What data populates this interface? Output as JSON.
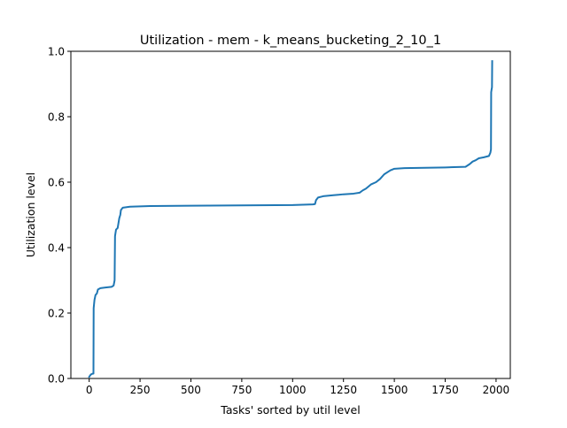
{
  "chart_data": {
    "type": "line",
    "title": "Utilization - mem - k_means_bucketing_2_10_1",
    "xlabel": "Tasks' sorted by util level",
    "ylabel": "Utilization level",
    "xlim": [
      -90,
      2070
    ],
    "ylim": [
      0.0,
      1.0
    ],
    "x_ticks": [
      0,
      250,
      500,
      750,
      1000,
      1250,
      1500,
      1750,
      2000
    ],
    "x_tick_labels": [
      "0",
      "250",
      "500",
      "750",
      "1000",
      "1250",
      "1500",
      "1750",
      "2000"
    ],
    "y_ticks": [
      0.0,
      0.2,
      0.4,
      0.6,
      0.8,
      1.0
    ],
    "y_tick_labels": [
      "0.0",
      "0.2",
      "0.4",
      "0.6",
      "0.8",
      "1.0"
    ],
    "grid": false,
    "legend": false,
    "series": [
      {
        "color": "#1f77b4",
        "points": [
          [
            0,
            0.005
          ],
          [
            8,
            0.012
          ],
          [
            17,
            0.015
          ],
          [
            21,
            0.015
          ],
          [
            22,
            0.215
          ],
          [
            26,
            0.24
          ],
          [
            31,
            0.255
          ],
          [
            38,
            0.26
          ],
          [
            43,
            0.272
          ],
          [
            55,
            0.276
          ],
          [
            80,
            0.278
          ],
          [
            110,
            0.28
          ],
          [
            120,
            0.284
          ],
          [
            125,
            0.3
          ],
          [
            127,
            0.435
          ],
          [
            132,
            0.455
          ],
          [
            140,
            0.46
          ],
          [
            148,
            0.49
          ],
          [
            153,
            0.5
          ],
          [
            156,
            0.515
          ],
          [
            165,
            0.522
          ],
          [
            200,
            0.525
          ],
          [
            300,
            0.527
          ],
          [
            500,
            0.528
          ],
          [
            750,
            0.529
          ],
          [
            1000,
            0.53
          ],
          [
            1100,
            0.532
          ],
          [
            1110,
            0.533
          ],
          [
            1115,
            0.545
          ],
          [
            1125,
            0.553
          ],
          [
            1150,
            0.557
          ],
          [
            1200,
            0.56
          ],
          [
            1250,
            0.563
          ],
          [
            1300,
            0.565
          ],
          [
            1330,
            0.568
          ],
          [
            1345,
            0.575
          ],
          [
            1360,
            0.58
          ],
          [
            1385,
            0.593
          ],
          [
            1410,
            0.6
          ],
          [
            1430,
            0.61
          ],
          [
            1450,
            0.624
          ],
          [
            1480,
            0.636
          ],
          [
            1500,
            0.641
          ],
          [
            1550,
            0.643
          ],
          [
            1650,
            0.644
          ],
          [
            1750,
            0.645
          ],
          [
            1850,
            0.647
          ],
          [
            1870,
            0.655
          ],
          [
            1885,
            0.663
          ],
          [
            1900,
            0.667
          ],
          [
            1915,
            0.673
          ],
          [
            1940,
            0.676
          ],
          [
            1965,
            0.68
          ],
          [
            1972,
            0.69
          ],
          [
            1975,
            0.7
          ],
          [
            1976,
            0.875
          ],
          [
            1978,
            0.883
          ],
          [
            1980,
            0.89
          ],
          [
            1981,
            0.97
          ]
        ]
      }
    ]
  }
}
